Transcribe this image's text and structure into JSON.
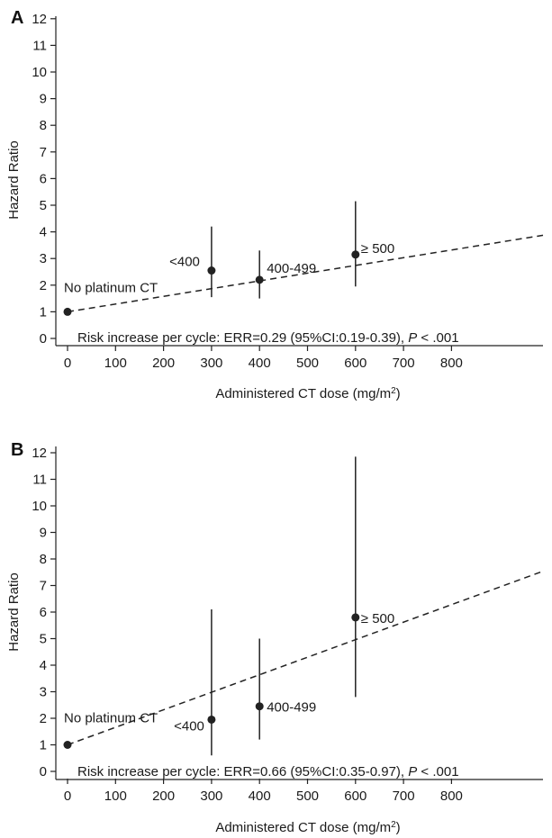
{
  "chart_data": [
    {
      "type": "scatter",
      "panel": "A",
      "xlabel_main": "Administered CT dose (mg/m",
      "xlabel_sup": "2",
      "xlabel_end": ")",
      "ylabel": "Hazard Ratio",
      "xlim": [
        0,
        1000
      ],
      "ylim": [
        0,
        12
      ],
      "xticks": [
        "0",
        "100",
        "200",
        "300",
        "400",
        "500",
        "600",
        "700",
        "800"
      ],
      "yticks": [
        "0",
        "1",
        "2",
        "3",
        "4",
        "5",
        "6",
        "7",
        "8",
        "9",
        "10",
        "11",
        "12"
      ],
      "points": [
        {
          "x": 0,
          "y": 1.0,
          "low": 1.0,
          "high": 1.0,
          "label": "No platinum CT"
        },
        {
          "x": 300,
          "y": 2.55,
          "low": 1.55,
          "high": 4.2,
          "label": "<400"
        },
        {
          "x": 400,
          "y": 2.2,
          "low": 1.5,
          "high": 3.3,
          "label": "400-499"
        },
        {
          "x": 600,
          "y": 3.15,
          "low": 1.95,
          "high": 5.15,
          "label": "≥ 500"
        }
      ],
      "trend": {
        "x": [
          0,
          1000
        ],
        "y": [
          1.0,
          3.9
        ]
      },
      "annotation_main": "Risk increase per cycle: ERR=0.29 (95%CI:0.19-0.39), ",
      "annotation_p": "P",
      "annotation_end": " < .001"
    },
    {
      "type": "scatter",
      "panel": "B",
      "xlabel_main": "Administered CT dose (mg/m",
      "xlabel_sup": "2",
      "xlabel_end": ")",
      "ylabel": "Hazard Ratio",
      "xlim": [
        0,
        1000
      ],
      "ylim": [
        0,
        12
      ],
      "xticks": [
        "0",
        "100",
        "200",
        "300",
        "400",
        "500",
        "600",
        "700",
        "800"
      ],
      "yticks": [
        "0",
        "1",
        "2",
        "3",
        "4",
        "5",
        "6",
        "7",
        "8",
        "9",
        "10",
        "11",
        "12"
      ],
      "points": [
        {
          "x": 0,
          "y": 1.0,
          "low": 1.0,
          "high": 1.0,
          "label": "No platinum CT"
        },
        {
          "x": 300,
          "y": 1.95,
          "low": 0.6,
          "high": 6.1,
          "label": "<400"
        },
        {
          "x": 400,
          "y": 2.45,
          "low": 1.2,
          "high": 5.0,
          "label": "400-499"
        },
        {
          "x": 600,
          "y": 5.8,
          "low": 2.8,
          "high": 11.85,
          "label": "≥ 500"
        }
      ],
      "trend": {
        "x": [
          0,
          1000
        ],
        "y": [
          1.0,
          7.6
        ]
      },
      "annotation_main": "Risk increase per cycle: ERR=0.66 (95%CI:0.35-0.97), ",
      "annotation_p": "P",
      "annotation_end": " < .001"
    }
  ]
}
